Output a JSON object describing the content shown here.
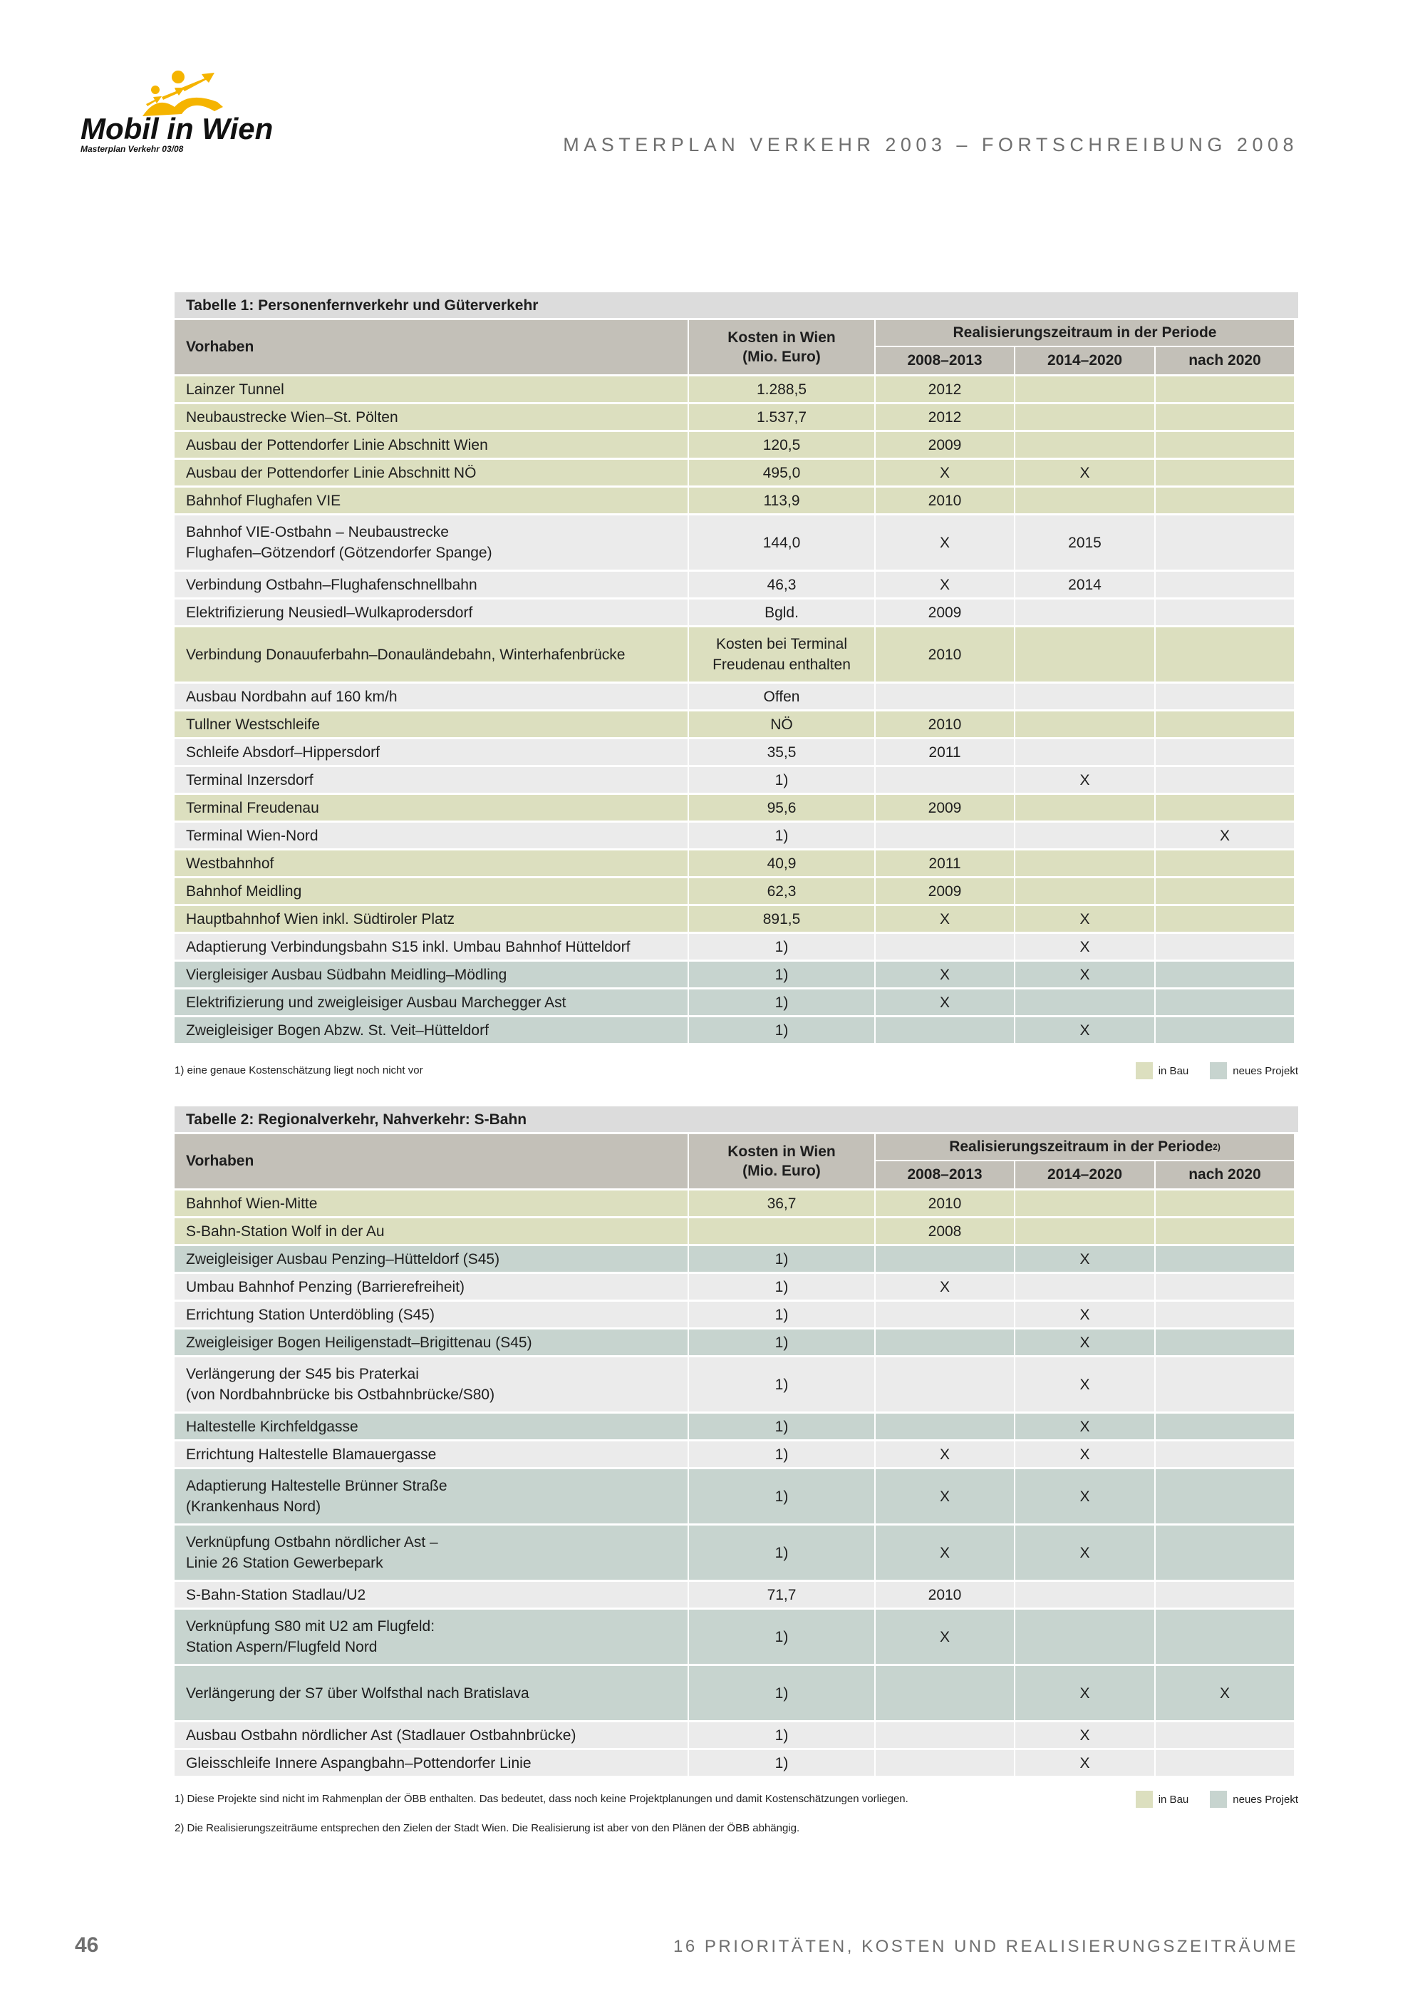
{
  "header": {
    "logo_text": "Mobil in Wien",
    "logo_subtext": "Masterplan Verkehr 03/08",
    "logo_color": "#f5b400",
    "doc_title": "MASTERPLAN VERKEHR 2003 – FORTSCHREIBUNG 2008"
  },
  "colors": {
    "in_bau": "#dcdfbf",
    "neues_projekt": "#c7d4cf",
    "other": "#ebebeb",
    "header": "#c3c0b8"
  },
  "columns": {
    "vorhaben": "Vorhaben",
    "kosten_line1": "Kosten in Wien",
    "kosten_line2": "(Mio. Euro)",
    "p1": "2008–2013",
    "p2": "2014–2020",
    "p3": "nach 2020"
  },
  "table1": {
    "title": "Tabelle 1: Personenfernverkehr und Güterverkehr",
    "group_header": "Realisierungszeitraum in der Periode",
    "rows": [
      {
        "status": "in_bau",
        "name": "Lainzer Tunnel",
        "kosten": "1.288,5",
        "p1": "2012",
        "p2": "",
        "p3": ""
      },
      {
        "status": "in_bau",
        "name": "Neubaustrecke Wien–St. Pölten",
        "kosten": "1.537,7",
        "p1": "2012",
        "p2": "",
        "p3": ""
      },
      {
        "status": "in_bau",
        "name": "Ausbau der Pottendorfer Linie Abschnitt Wien",
        "kosten": "120,5",
        "p1": "2009",
        "p2": "",
        "p3": ""
      },
      {
        "status": "in_bau",
        "name": "Ausbau der Pottendorfer Linie Abschnitt NÖ",
        "kosten": "495,0",
        "p1": "X",
        "p2": "X",
        "p3": ""
      },
      {
        "status": "in_bau",
        "name": "Bahnhof Flughafen VIE",
        "kosten": "113,9",
        "p1": "2010",
        "p2": "",
        "p3": ""
      },
      {
        "status": "other",
        "name": "Bahnhof VIE-Ostbahn – Neubaustrecke\nFlughafen–Götzendorf (Götzendorfer Spange)",
        "kosten": "144,0",
        "p1": "X",
        "p2": "2015",
        "p3": ""
      },
      {
        "status": "other",
        "name": "Verbindung Ostbahn–Flughafenschnellbahn",
        "kosten": "46,3",
        "p1": "X",
        "p2": "2014",
        "p3": ""
      },
      {
        "status": "other",
        "name": "Elektrifizierung Neusiedl–Wulkaprodersdorf",
        "kosten": "Bgld.",
        "p1": "2009",
        "p2": "",
        "p3": ""
      },
      {
        "status": "in_bau",
        "name": "Verbindung Donauuferbahn–Donauländebahn, Winterhafenbrücke",
        "kosten": "Kosten bei Terminal\nFreudenau enthalten",
        "p1": "2010",
        "p2": "",
        "p3": ""
      },
      {
        "status": "other",
        "name": "Ausbau Nordbahn auf 160 km/h",
        "kosten": "Offen",
        "p1": "",
        "p2": "",
        "p3": ""
      },
      {
        "status": "in_bau",
        "name": "Tullner Westschleife",
        "kosten": "NÖ",
        "p1": "2010",
        "p2": "",
        "p3": ""
      },
      {
        "status": "other",
        "name": "Schleife Absdorf–Hippersdorf",
        "kosten": "35,5",
        "p1": "2011",
        "p2": "",
        "p3": ""
      },
      {
        "status": "other",
        "name": "Terminal Inzersdorf",
        "kosten": "1)",
        "p1": "",
        "p2": "X",
        "p3": ""
      },
      {
        "status": "in_bau",
        "name": "Terminal Freudenau",
        "kosten": "95,6",
        "p1": "2009",
        "p2": "",
        "p3": ""
      },
      {
        "status": "other",
        "name": "Terminal Wien-Nord",
        "kosten": "1)",
        "p1": "",
        "p2": "",
        "p3": "X"
      },
      {
        "status": "in_bau",
        "name": "Westbahnhof",
        "kosten": "40,9",
        "p1": "2011",
        "p2": "",
        "p3": ""
      },
      {
        "status": "in_bau",
        "name": "Bahnhof Meidling",
        "kosten": "62,3",
        "p1": "2009",
        "p2": "",
        "p3": ""
      },
      {
        "status": "in_bau",
        "name": "Hauptbahnhof Wien inkl. Südtiroler Platz",
        "kosten": "891,5",
        "p1": "X",
        "p2": "X",
        "p3": ""
      },
      {
        "status": "other",
        "name": "Adaptierung Verbindungsbahn S15 inkl. Umbau Bahnhof Hütteldorf",
        "kosten": "1)",
        "p1": "",
        "p2": "X",
        "p3": ""
      },
      {
        "status": "neues_projekt",
        "name": "Viergleisiger Ausbau Südbahn Meidling–Mödling",
        "kosten": "1)",
        "p1": "X",
        "p2": "X",
        "p3": ""
      },
      {
        "status": "neues_projekt",
        "name": "Elektrifizierung und zweigleisiger Ausbau Marchegger Ast",
        "kosten": "1)",
        "p1": "X",
        "p2": "",
        "p3": ""
      },
      {
        "status": "neues_projekt",
        "name": "Zweigleisiger Bogen Abzw. St. Veit–Hütteldorf",
        "kosten": "1)",
        "p1": "",
        "p2": "X",
        "p3": ""
      }
    ],
    "footnote1": "1) eine genaue Kostenschätzung liegt noch nicht vor"
  },
  "table2": {
    "title": "Tabelle 2: Regionalverkehr, Nahverkehr: S-Bahn",
    "group_header": "Realisierungszeitraum in der Periode",
    "group_header_sup": "2)",
    "rows": [
      {
        "status": "in_bau",
        "name": "Bahnhof Wien-Mitte",
        "kosten": "36,7",
        "p1": "2010",
        "p2": "",
        "p3": ""
      },
      {
        "status": "in_bau",
        "name": "S-Bahn-Station Wolf in der Au",
        "kosten": "",
        "p1": "2008",
        "p2": "",
        "p3": ""
      },
      {
        "status": "neues_projekt",
        "name": "Zweigleisiger Ausbau Penzing–Hütteldorf (S45)",
        "kosten": "1)",
        "p1": "",
        "p2": "X",
        "p3": ""
      },
      {
        "status": "other",
        "name": "Umbau Bahnhof Penzing (Barrierefreiheit)",
        "kosten": "1)",
        "p1": "X",
        "p2": "",
        "p3": ""
      },
      {
        "status": "other",
        "name": "Errichtung Station Unterdöbling (S45)",
        "kosten": "1)",
        "p1": "",
        "p2": "X",
        "p3": ""
      },
      {
        "status": "neues_projekt",
        "name": "Zweigleisiger Bogen Heiligenstadt–Brigittenau (S45)",
        "kosten": "1)",
        "p1": "",
        "p2": "X",
        "p3": ""
      },
      {
        "status": "other",
        "name": "Verlängerung der S45 bis Praterkai\n(von Nordbahnbrücke bis Ostbahnbrücke/S80)",
        "kosten": "1)",
        "p1": "",
        "p2": "X",
        "p3": ""
      },
      {
        "status": "neues_projekt",
        "name": "Haltestelle Kirchfeldgasse",
        "kosten": "1)",
        "p1": "",
        "p2": "X",
        "p3": ""
      },
      {
        "status": "other",
        "name": "Errichtung Haltestelle Blamauergasse",
        "kosten": "1)",
        "p1": "X",
        "p2": "X",
        "p3": ""
      },
      {
        "status": "neues_projekt",
        "name": "Adaptierung Haltestelle Brünner Straße\n(Krankenhaus Nord)",
        "kosten": "1)",
        "p1": "X",
        "p2": "X",
        "p3": ""
      },
      {
        "status": "neues_projekt",
        "name": "Verknüpfung Ostbahn nördlicher Ast –\nLinie 26 Station Gewerbepark",
        "kosten": "1)",
        "p1": "X",
        "p2": "X",
        "p3": ""
      },
      {
        "status": "other",
        "name": "S-Bahn-Station Stadlau/U2",
        "kosten": "71,7",
        "p1": "2010",
        "p2": "",
        "p3": ""
      },
      {
        "status": "neues_projekt",
        "name": "Verknüpfung S80 mit U2 am Flugfeld:\nStation Aspern/Flugfeld Nord",
        "kosten": "1)",
        "p1": "X",
        "p2": "",
        "p3": ""
      },
      {
        "status": "neues_projekt",
        "name": "Verlängerung der S7 über Wolfsthal nach Bratislava",
        "kosten": "1)",
        "p1": "",
        "p2": "X",
        "p3": "X",
        "tall": true
      },
      {
        "status": "other",
        "name": "Ausbau Ostbahn nördlicher Ast (Stadlauer Ostbahnbrücke)",
        "kosten": "1)",
        "p1": "",
        "p2": "X",
        "p3": ""
      },
      {
        "status": "other",
        "name": "Gleisschleife Innere Aspangbahn–Pottendorfer Linie",
        "kosten": "1)",
        "p1": "",
        "p2": "X",
        "p3": ""
      }
    ],
    "footnote1": "1) Diese Projekte sind nicht im Rahmenplan der ÖBB enthalten. Das bedeutet, dass noch keine Projektplanungen und damit Kostenschätzungen vorliegen.",
    "footnote2": "2) Die Realisierungszeiträume entsprechen den Zielen der Stadt Wien. Die Realisierung ist aber von den Plänen der ÖBB abhängig."
  },
  "legend": {
    "in_bau": "in Bau",
    "neues_projekt": "neues Projekt"
  },
  "footer": {
    "page_number": "46",
    "section_title": "16 PRIORITÄTEN, KOSTEN UND REALISIERUNGSZEITRÄUME"
  }
}
